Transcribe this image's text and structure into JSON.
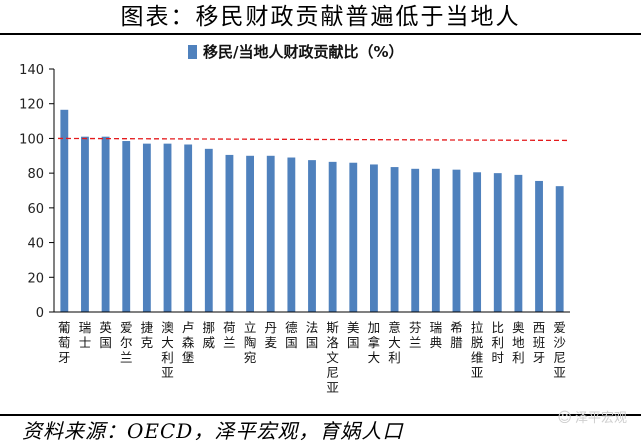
{
  "page": {
    "title": "图表：移民财政贡献普遍低于当地人",
    "source": "资料来源：OECD，泽平宏观，育娲人口",
    "watermark": "泽平宏观",
    "watermark_icon": "wechat-icon"
  },
  "chart_data": {
    "type": "bar",
    "title": "",
    "xlabel": "",
    "ylabel": "",
    "ylim": [
      0,
      140
    ],
    "yticks": [
      0,
      20,
      40,
      60,
      80,
      100,
      120,
      140
    ],
    "grid": false,
    "legend_position": "top-center",
    "bar_color": "#4F81BD",
    "reference_line": {
      "value": 100,
      "color": "#E41A1C",
      "style": "dashed"
    },
    "categories": [
      "葡萄牙",
      "瑞士",
      "英国",
      "爱尔兰",
      "捷克",
      "澳大利亚",
      "卢森堡",
      "挪威",
      "荷兰",
      "立陶宛",
      "丹麦",
      "德国",
      "法国",
      "斯洛文尼亚",
      "美国",
      "加拿大",
      "意大利",
      "芬兰",
      "瑞典",
      "希腊",
      "拉脱维亚",
      "比利时",
      "奥地利",
      "西班牙",
      "爱沙尼亚"
    ],
    "series": [
      {
        "name": "移民/当地人财政贡献比（%）",
        "values": [
          116.5,
          101,
          101,
          98.5,
          97,
          97,
          96.5,
          94,
          90.5,
          90,
          90,
          89,
          87.5,
          86.5,
          86,
          85,
          83.5,
          82.5,
          82.5,
          82,
          80.5,
          80,
          79,
          75.5,
          72.5
        ]
      }
    ]
  }
}
